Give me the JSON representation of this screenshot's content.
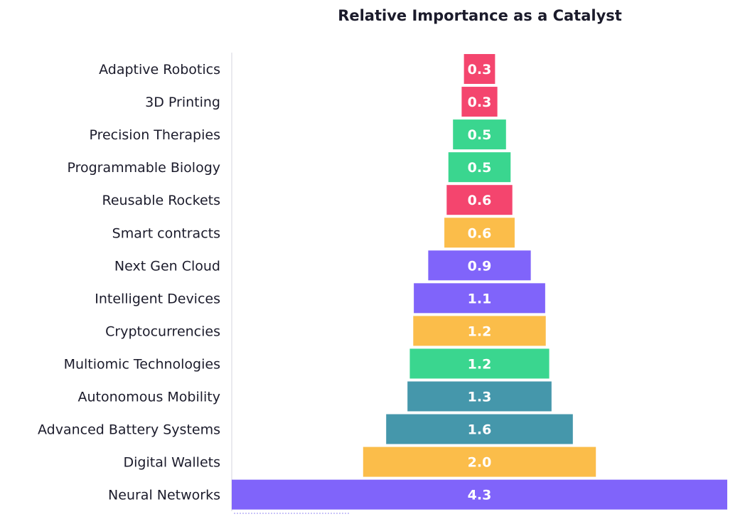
{
  "chart_data": {
    "type": "bar",
    "orientation": "horizontal",
    "style": "centered funnel",
    "title": "Relative Importance as a Catalyst",
    "xlabel": "",
    "ylabel": "",
    "grid": false,
    "categories": [
      "Adaptive Robotics",
      "3D Printing",
      "Precision Therapies",
      "Programmable Biology",
      "Reusable Rockets",
      "Smart contracts",
      "Next Gen Cloud",
      "Intelligent Devices",
      "Cryptocurrencies",
      "Multiomic Technologies",
      "Autonomous Mobility",
      "Advanced Battery Systems",
      "Digital Wallets",
      "Neural Networks"
    ],
    "values": [
      0.27,
      0.31,
      0.46,
      0.54,
      0.57,
      0.61,
      0.89,
      1.14,
      1.15,
      1.21,
      1.25,
      1.62,
      2.02,
      4.3
    ],
    "labels": [
      "0.3",
      "0.3",
      "0.5",
      "0.5",
      "0.6",
      "0.6",
      "0.9",
      "1.1",
      "1.2",
      "1.2",
      "1.3",
      "1.6",
      "2.0",
      "4.3"
    ],
    "colors": [
      "#F4456E",
      "#F4456E",
      "#3AD68F",
      "#3AD68F",
      "#F4456E",
      "#FBBD4A",
      "#8064FA",
      "#8064FA",
      "#FBBD4A",
      "#3AD68F",
      "#4597AB",
      "#4597AB",
      "#FBBD4A",
      "#8064FA"
    ],
    "xlim": [
      0,
      4.3
    ]
  }
}
